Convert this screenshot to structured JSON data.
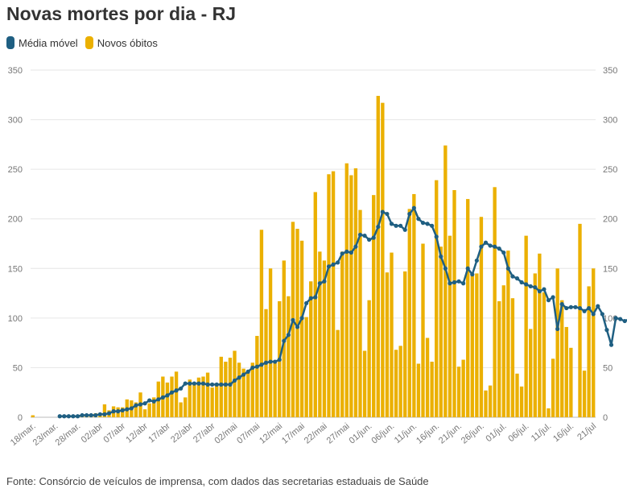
{
  "title": "Novas mortes por dia - RJ",
  "legend": [
    {
      "label": "Média móvel",
      "color": "#1f5f82"
    },
    {
      "label": "Novos óbitos",
      "color": "#ebb000"
    }
  ],
  "source": "Fonte: Consórcio de veículos de imprensa, com dados das secretarias estaduais de Saúde",
  "chart_data": {
    "type": "bar",
    "start_date": "2020-03-18",
    "ylim": [
      0,
      350
    ],
    "y_ticks": [
      0,
      50,
      100,
      150,
      200,
      250,
      300,
      350
    ],
    "x_tick_labels": [
      "18/mar.",
      "23/mar.",
      "28/mar.",
      "02/abr",
      "07/abr",
      "12/abr",
      "17/abr",
      "22/abr",
      "27/abr",
      "02/mai",
      "07/mai",
      "12/mai",
      "17/mai",
      "22/mai",
      "27/mai",
      "01/jun.",
      "06/jun.",
      "11/jun.",
      "16/jun.",
      "21/jun.",
      "26/jun.",
      "01/jul.",
      "06/jul.",
      "11/jul.",
      "16/jul.",
      "21/jul"
    ],
    "grid": true,
    "legend_position": "top-left",
    "series": [
      {
        "name": "Novos óbitos",
        "type": "bar",
        "color": "#ebb000",
        "values": [
          2,
          0,
          0,
          0,
          0,
          0,
          1,
          1,
          2,
          1,
          2,
          3,
          3,
          3,
          4,
          4,
          13,
          7,
          11,
          10,
          10,
          18,
          17,
          15,
          25,
          8,
          14,
          20,
          36,
          41,
          35,
          41,
          46,
          15,
          20,
          38,
          33,
          40,
          41,
          45,
          30,
          32,
          61,
          56,
          60,
          67,
          55,
          49,
          46,
          55,
          82,
          189,
          109,
          150,
          56,
          117,
          158,
          122,
          197,
          190,
          178,
          101,
          137,
          227,
          167,
          158,
          245,
          248,
          88,
          167,
          256,
          244,
          251,
          209,
          67,
          118,
          224,
          324,
          317,
          146,
          166,
          68,
          72,
          147,
          210,
          225,
          54,
          175,
          80,
          56,
          239,
          172,
          274,
          183,
          229,
          51,
          58,
          220,
          143,
          145,
          202,
          27,
          32,
          232,
          117,
          133,
          168,
          120,
          44,
          31,
          183,
          89,
          145,
          165,
          126,
          9,
          59,
          150,
          118,
          91,
          70,
          0,
          195,
          47,
          132,
          150
        ]
      },
      {
        "name": "Média móvel",
        "type": "line",
        "color": "#1f5f82",
        "start_index": 6,
        "values": [
          1,
          1,
          1,
          1,
          1,
          2,
          2,
          2,
          2,
          3,
          3,
          4,
          6,
          6,
          7,
          8,
          9,
          12,
          13,
          14,
          17,
          16,
          18,
          20,
          22,
          25,
          27,
          29,
          34,
          34,
          34,
          34,
          34,
          33,
          33,
          33,
          33,
          33,
          33,
          37,
          40,
          43,
          46,
          50,
          51,
          53,
          55,
          56,
          56,
          58,
          77,
          83,
          98,
          91,
          100,
          115,
          120,
          121,
          135,
          137,
          152,
          154,
          156,
          165,
          167,
          166,
          172,
          184,
          183,
          179,
          181,
          192,
          207,
          205,
          195,
          193,
          193,
          189,
          205,
          211,
          200,
          196,
          195,
          193,
          182,
          162,
          150,
          135,
          136,
          137,
          135,
          150,
          144,
          158,
          172,
          176,
          173,
          172,
          170,
          166,
          150,
          142,
          140,
          136,
          134,
          132,
          131,
          127,
          129,
          118,
          121,
          89,
          114,
          110,
          111,
          111,
          110,
          107,
          110,
          104,
          112,
          104,
          88,
          73,
          100,
          99,
          97,
          99,
          98
        ]
      }
    ]
  }
}
